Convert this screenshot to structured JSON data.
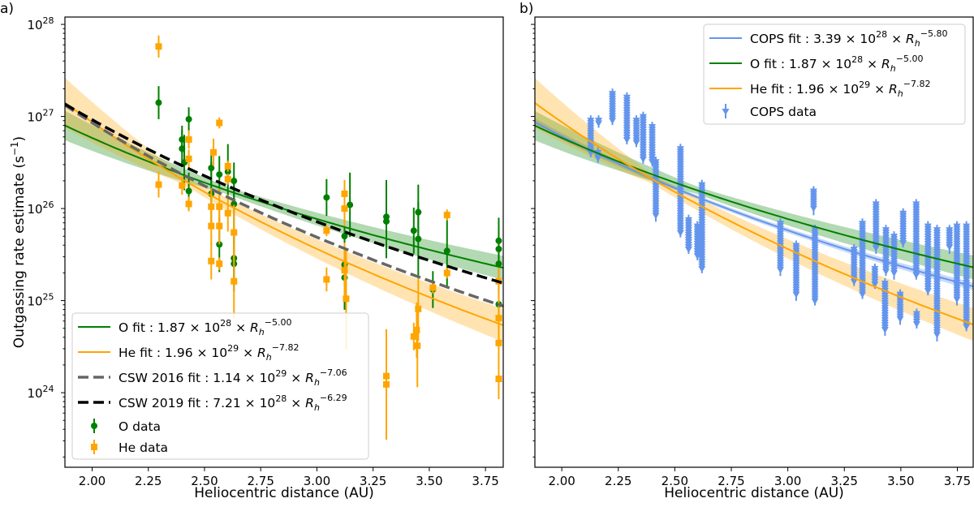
{
  "chart_data": [
    {
      "type": "scatter",
      "panel_label": "a)",
      "xlabel": "Heliocentric distance (AU)",
      "ylabel": "Outgassing rate estimate (s",
      "ylabel_sup": "−1",
      "ylabel_end": ")",
      "yscale": "log",
      "xlim": [
        1.879,
        3.829
      ],
      "ylim_log10": [
        23.19,
        28.08
      ],
      "xticks": [
        "2.00",
        "2.25",
        "2.50",
        "2.75",
        "3.00",
        "3.25",
        "3.50",
        "3.75"
      ],
      "yticks_exp": [
        "24",
        "25",
        "26",
        "27",
        "28"
      ],
      "legend_position": "lower-left",
      "fits": [
        {
          "key": "O",
          "name": "O fit",
          "coef": "1.87",
          "exp10": "28",
          "power": "−5.00",
          "a": 1.87e+28,
          "b": -5.0,
          "color": "#008000",
          "style": "solid",
          "band_dex": [
            [
              1.88,
              0.16
            ],
            [
              2.6,
              0.04
            ],
            [
              3.83,
              0.13
            ]
          ]
        },
        {
          "key": "He",
          "name": "He fit",
          "coef": "1.96",
          "exp10": "29",
          "power": "−7.82",
          "a": 1.96e+29,
          "b": -7.82,
          "color": "#ffa500",
          "style": "solid",
          "band_dex": [
            [
              1.88,
              0.27
            ],
            [
              2.4,
              0.05
            ],
            [
              3.83,
              0.18
            ]
          ]
        },
        {
          "key": "CSW2016",
          "name": "CSW 2016 fit",
          "coef": "1.14",
          "exp10": "29",
          "power": "−7.06",
          "a": 1.14e+29,
          "b": -7.06,
          "color": "#666666",
          "style": "dashed"
        },
        {
          "key": "CSW2019",
          "name": "CSW 2019 fit",
          "coef": "7.21",
          "exp10": "28",
          "power": "−6.29",
          "a": 7.21e+28,
          "b": -6.29,
          "color": "#000000",
          "style": "dashed"
        }
      ],
      "datasets": [
        {
          "name": "O data",
          "marker": "circle",
          "color": "#008000",
          "points_x_log10y_errdex": [
            [
              2.296,
              27.15,
              0.18
            ],
            [
              2.4,
              26.75,
              0.15
            ],
            [
              2.4,
              26.65,
              0.2
            ],
            [
              2.43,
              26.97,
              0.13
            ],
            [
              2.43,
              26.19,
              0.2
            ],
            [
              2.41,
              26.5,
              0.3
            ],
            [
              2.53,
              26.44,
              0.2
            ],
            [
              2.53,
              26.16,
              0.35
            ],
            [
              2.566,
              26.37,
              0.2
            ],
            [
              2.566,
              25.61,
              0.3
            ],
            [
              2.604,
              26.4,
              0.3
            ],
            [
              2.631,
              26.3,
              0.2
            ],
            [
              2.631,
              26.05,
              0.3
            ],
            [
              2.631,
              25.46,
              0.3
            ],
            [
              2.631,
              25.4,
              0.3
            ],
            [
              3.043,
              26.12,
              0.2
            ],
            [
              3.123,
              25.39,
              0.3
            ],
            [
              3.123,
              25.25,
              0.35
            ],
            [
              3.123,
              25.7,
              0.4
            ],
            [
              3.147,
              26.04,
              0.35
            ],
            [
              3.309,
              25.91,
              0.4
            ],
            [
              3.309,
              25.86,
              0.4
            ],
            [
              3.431,
              25.76,
              0.25
            ],
            [
              3.451,
              25.96,
              0.3
            ],
            [
              3.451,
              25.67,
              0.4
            ],
            [
              3.579,
              25.54,
              0.4
            ],
            [
              3.516,
              25.12,
              0.2
            ],
            [
              3.809,
              25.65,
              0.25
            ],
            [
              3.809,
              25.56,
              0.2
            ],
            [
              3.809,
              25.4,
              0.3
            ],
            [
              3.809,
              24.96,
              0.2
            ]
          ]
        },
        {
          "name": "He data",
          "marker": "square",
          "color": "#ffa500",
          "points_x_log10y_errdex": [
            [
              2.296,
              27.76,
              0.12
            ],
            [
              2.296,
              26.26,
              0.14
            ],
            [
              2.4,
              26.25,
              0.1
            ],
            [
              2.43,
              26.75,
              0.1
            ],
            [
              2.43,
              26.54,
              0.1
            ],
            [
              2.43,
              26.05,
              0.08
            ],
            [
              2.54,
              26.61,
              0.15
            ],
            [
              2.53,
              26.02,
              0.2
            ],
            [
              2.53,
              25.81,
              0.2
            ],
            [
              2.53,
              25.43,
              0.2
            ],
            [
              2.566,
              26.93,
              0.06
            ],
            [
              2.566,
              26.02,
              0.2
            ],
            [
              2.566,
              25.81,
              0.2
            ],
            [
              2.566,
              25.4,
              0.07
            ],
            [
              2.604,
              26.46,
              0.06
            ],
            [
              2.604,
              26.32,
              0.06
            ],
            [
              2.604,
              25.95,
              0.2
            ],
            [
              2.631,
              25.74,
              0.3
            ],
            [
              2.631,
              25.21,
              0.4
            ],
            [
              3.043,
              25.76,
              0.06
            ],
            [
              3.043,
              25.23,
              0.13
            ],
            [
              3.123,
              26.16,
              0.15
            ],
            [
              3.123,
              26.0,
              0.2
            ],
            [
              3.123,
              25.33,
              0.3
            ],
            [
              3.13,
              25.02,
              0.55
            ],
            [
              3.309,
              24.18,
              0.3
            ],
            [
              3.309,
              24.09,
              0.6
            ],
            [
              3.431,
              24.61,
              0.15
            ],
            [
              3.444,
              24.68,
              0.3
            ],
            [
              3.447,
              24.51,
              0.45
            ],
            [
              3.451,
              24.91,
              0.35
            ],
            [
              3.516,
              25.14,
              0.06
            ],
            [
              3.579,
              25.93,
              0.06
            ],
            [
              3.579,
              25.3,
              0.06
            ],
            [
              3.809,
              25.21,
              0.15
            ],
            [
              3.809,
              24.81,
              0.3
            ],
            [
              3.809,
              24.54,
              0.2
            ],
            [
              3.809,
              24.15,
              0.22
            ]
          ]
        }
      ]
    },
    {
      "type": "scatter",
      "panel_label": "b)",
      "xlabel": "Heliocentric distance (AU)",
      "yscale": "log",
      "xlim": [
        1.881,
        3.82
      ],
      "ylim_log10": [
        23.19,
        28.08
      ],
      "xticks": [
        "2.00",
        "2.25",
        "2.50",
        "2.75",
        "3.00",
        "3.25",
        "3.50",
        "3.75"
      ],
      "legend_position": "upper-right",
      "fits": [
        {
          "key": "COPS",
          "name": "COPS fit",
          "coef": "3.39",
          "exp10": "28",
          "power": "−5.80",
          "a": 3.39e+28,
          "b": -5.8,
          "color": "#6495ed",
          "style": "solid",
          "band_dex": [
            [
              1.88,
              0.04
            ],
            [
              2.6,
              0.02
            ],
            [
              3.83,
              0.04
            ]
          ]
        },
        {
          "key": "O",
          "name": "O fit",
          "coef": "1.87",
          "exp10": "28",
          "power": "−5.00",
          "a": 1.87e+28,
          "b": -5.0,
          "color": "#008000",
          "style": "solid",
          "band_dex": [
            [
              1.88,
              0.16
            ],
            [
              2.6,
              0.04
            ],
            [
              3.83,
              0.13
            ]
          ]
        },
        {
          "key": "He",
          "name": "He fit",
          "coef": "1.96",
          "exp10": "29",
          "power": "−7.82",
          "a": 1.96e+29,
          "b": -7.82,
          "color": "#ffa500",
          "style": "solid",
          "band_dex": [
            [
              1.88,
              0.27
            ],
            [
              2.4,
              0.05
            ],
            [
              3.83,
              0.18
            ]
          ]
        }
      ],
      "datasets": [
        {
          "name": "COPS data",
          "marker": "triangle-down",
          "color": "#6495ed",
          "clusters_x_log10top_log10bottom": [
            [
              2.128,
              26.96,
              26.61
            ],
            [
              2.16,
              26.61,
              26.55
            ],
            [
              2.163,
              26.96,
              26.93
            ],
            [
              2.224,
              27.25,
              26.96
            ],
            [
              2.288,
              27.21,
              26.75
            ],
            [
              2.33,
              26.96,
              26.72
            ],
            [
              2.36,
              27.0,
              26.54
            ],
            [
              2.4,
              26.89,
              26.51
            ],
            [
              2.416,
              26.51,
              25.91
            ],
            [
              2.525,
              26.65,
              25.74
            ],
            [
              2.561,
              25.88,
              25.56
            ],
            [
              2.6,
              25.81,
              25.49
            ],
            [
              2.62,
              26.26,
              25.35
            ],
            [
              2.967,
              25.84,
              25.32
            ],
            [
              3.037,
              25.6,
              25.05
            ],
            [
              3.114,
              26.19,
              25.98
            ],
            [
              3.12,
              25.77,
              25.0
            ],
            [
              3.293,
              25.56,
              25.21
            ],
            [
              3.33,
              25.84,
              25.07
            ],
            [
              3.39,
              26.05,
              25.56
            ],
            [
              3.385,
              25.35,
              25.18
            ],
            [
              3.43,
              25.19,
              24.67
            ],
            [
              3.434,
              25.77,
              25.32
            ],
            [
              3.47,
              25.7,
              25.28
            ],
            [
              3.497,
              25.07,
              24.79
            ],
            [
              3.51,
              25.95,
              25.63
            ],
            [
              3.568,
              26.05,
              25.28
            ],
            [
              3.57,
              24.86,
              24.75
            ],
            [
              3.62,
              25.81,
              25.11
            ],
            [
              3.66,
              25.77,
              24.61
            ],
            [
              3.715,
              25.77,
              25.56
            ],
            [
              3.748,
              25.81,
              25.0
            ],
            [
              3.79,
              25.81,
              24.72
            ]
          ]
        }
      ]
    }
  ]
}
